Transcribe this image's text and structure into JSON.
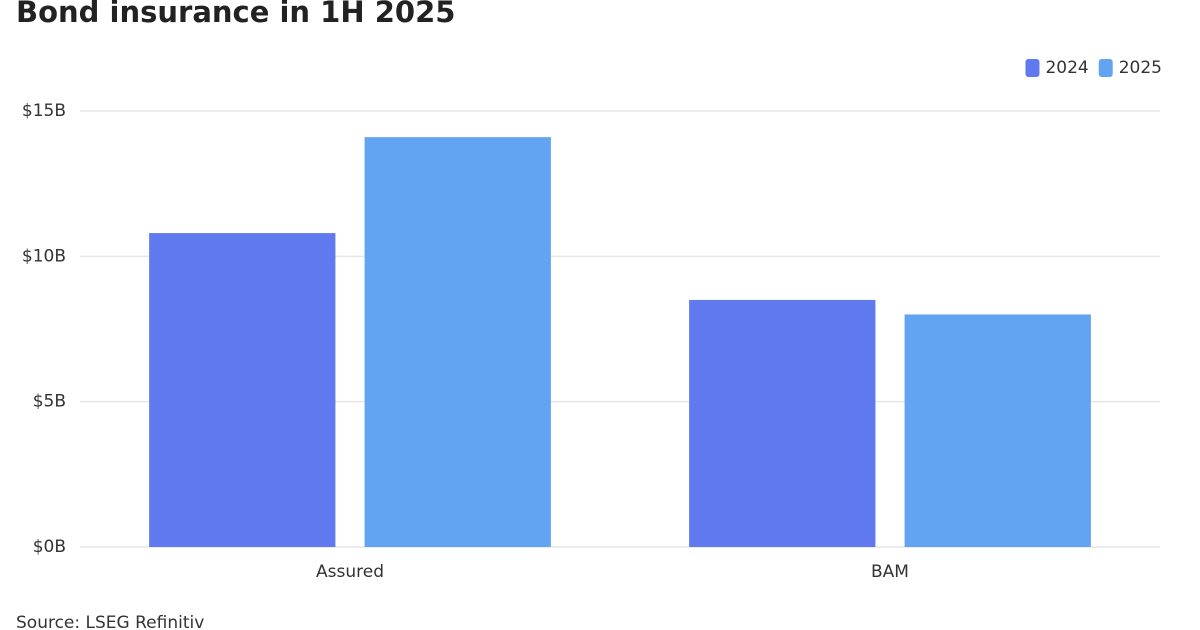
{
  "chart_data": {
    "type": "bar",
    "title": "Bond insurance in 1H 2025",
    "categories": [
      "Assured",
      "BAM"
    ],
    "series": [
      {
        "name": "2024",
        "color": "#6179ee",
        "values": [
          10.8,
          8.5
        ]
      },
      {
        "name": "2025",
        "color": "#62a3f2",
        "values": [
          14.1,
          8.0
        ]
      }
    ],
    "ylim": [
      0,
      15
    ],
    "yticks": [
      {
        "value": 0,
        "label": "$0B"
      },
      {
        "value": 5,
        "label": "$5B"
      },
      {
        "value": 10,
        "label": "$10B"
      },
      {
        "value": 15,
        "label": "$15B"
      }
    ],
    "grid": true,
    "legend": "top-right",
    "source": "Source: LSEG Refinitiv"
  }
}
